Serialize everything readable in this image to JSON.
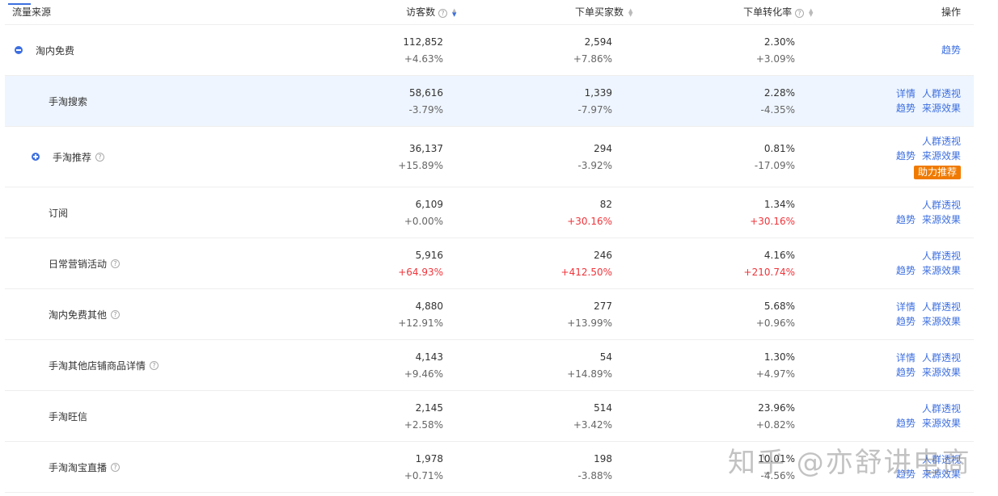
{
  "header": {
    "source": "流量来源",
    "visitors": "访客数",
    "buyers": "下单买家数",
    "rate": "下单转化率",
    "ops": "操作",
    "help": "?"
  },
  "rows": [
    {
      "name": "淘内免费",
      "toggle": "minus",
      "help": false,
      "visitors": "112,852",
      "visitors_change": "+4.63%",
      "buyers": "2,594",
      "buyers_change": "+7.86%",
      "rate": "2.30%",
      "rate_change": "+3.09%",
      "ops": [
        [
          "趋势"
        ]
      ]
    },
    {
      "name": "手淘搜索",
      "indent": true,
      "highlight": true,
      "visitors": "58,616",
      "visitors_change": "-3.79%",
      "buyers": "1,339",
      "buyers_change": "-7.97%",
      "rate": "2.28%",
      "rate_change": "-4.35%",
      "ops": [
        [
          "详情",
          "人群透视"
        ],
        [
          "趋势",
          "来源效果"
        ]
      ]
    },
    {
      "name": "手淘推荐",
      "toggle": "plus",
      "help": true,
      "indent": true,
      "visitors": "36,137",
      "visitors_change": "+15.89%",
      "buyers": "294",
      "buyers_change": "-3.92%",
      "rate": "0.81%",
      "rate_change": "-17.09%",
      "ops": [
        [
          "人群透视"
        ],
        [
          "趋势",
          "来源效果"
        ]
      ],
      "badge": "助力推荐"
    },
    {
      "name": "订阅",
      "indent": true,
      "visitors": "6,109",
      "visitors_change": "+0.00%",
      "buyers": "82",
      "buyers_change": "+30.16%",
      "buyers_up": true,
      "rate": "1.34%",
      "rate_change": "+30.16%",
      "rate_up": true,
      "ops": [
        [
          "人群透视"
        ],
        [
          "趋势",
          "来源效果"
        ]
      ]
    },
    {
      "name": "日常营销活动",
      "help": true,
      "indent": true,
      "visitors": "5,916",
      "visitors_change": "+64.93%",
      "visitors_up": true,
      "buyers": "246",
      "buyers_change": "+412.50%",
      "buyers_up": true,
      "rate": "4.16%",
      "rate_change": "+210.74%",
      "rate_up": true,
      "ops": [
        [
          "人群透视"
        ],
        [
          "趋势",
          "来源效果"
        ]
      ]
    },
    {
      "name": "淘内免费其他",
      "help": true,
      "indent": true,
      "visitors": "4,880",
      "visitors_change": "+12.91%",
      "buyers": "277",
      "buyers_change": "+13.99%",
      "rate": "5.68%",
      "rate_change": "+0.96%",
      "ops": [
        [
          "详情",
          "人群透视"
        ],
        [
          "趋势",
          "来源效果"
        ]
      ]
    },
    {
      "name": "手淘其他店铺商品详情",
      "help": true,
      "indent": true,
      "visitors": "4,143",
      "visitors_change": "+9.46%",
      "buyers": "54",
      "buyers_change": "+14.89%",
      "rate": "1.30%",
      "rate_change": "+4.97%",
      "ops": [
        [
          "详情",
          "人群透视"
        ],
        [
          "趋势",
          "来源效果"
        ]
      ]
    },
    {
      "name": "手淘旺信",
      "indent": true,
      "visitors": "2,145",
      "visitors_change": "+2.58%",
      "buyers": "514",
      "buyers_change": "+3.42%",
      "rate": "23.96%",
      "rate_change": "+0.82%",
      "ops": [
        [
          "人群透视"
        ],
        [
          "趋势",
          "来源效果"
        ]
      ]
    },
    {
      "name": "手淘淘宝直播",
      "help": true,
      "indent": true,
      "visitors": "1,978",
      "visitors_change": "+0.71%",
      "buyers": "198",
      "buyers_change": "-3.88%",
      "rate": "10.01%",
      "rate_change": "-4.56%",
      "ops": [
        [
          "人群透视"
        ],
        [
          "趋势",
          "来源效果"
        ]
      ]
    }
  ],
  "watermark": "知乎 @亦舒讲电商",
  "colors": {
    "accent": "#3d6fe0",
    "up": "#f0343a",
    "badge": "#f07a00",
    "highlight": "#eef5fe"
  }
}
